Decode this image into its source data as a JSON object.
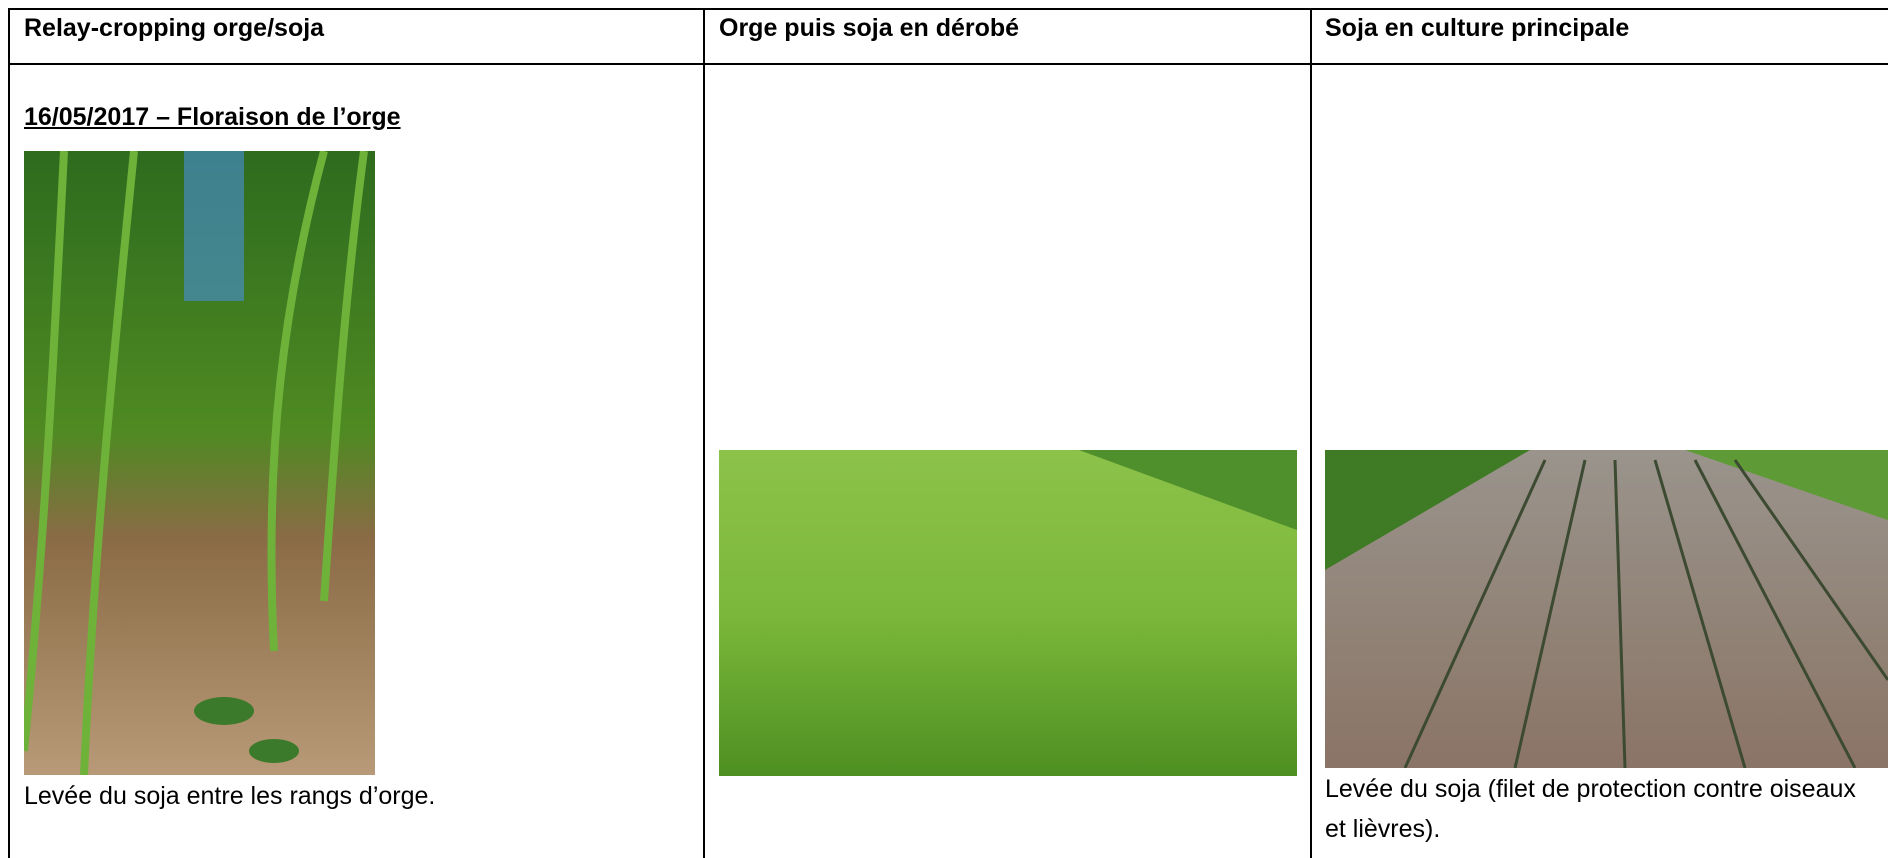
{
  "table": {
    "header": [
      "Relay-cropping orge/soja",
      "Orge puis soja en dérobé",
      "Soja en culture principale"
    ],
    "cells": [
      {
        "heading": "16/05/2017 – Floraison de l’orge",
        "caption": "Levée du soja entre les rangs d’orge."
      },
      {},
      {
        "caption": "Levée du soja (filet de protection contre oiseaux et lièvres)."
      }
    ]
  }
}
